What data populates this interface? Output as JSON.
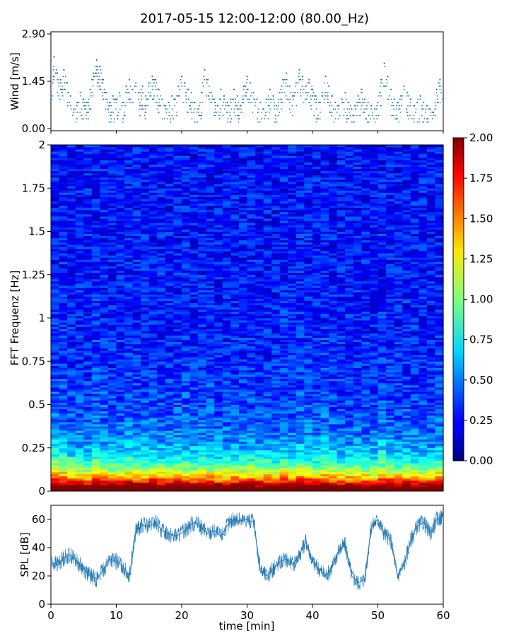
{
  "figure": {
    "title": "2017-05-15 12:00-12:00 (80.00_Hz)"
  },
  "chart_data": [
    {
      "type": "scatter",
      "panel": "wind",
      "ylabel": "Wind [m/s]",
      "xlim": [
        0,
        60
      ],
      "ylim": [
        0,
        2.9
      ],
      "yticks": [
        0.0,
        1.45,
        2.9
      ],
      "ytick_labels": [
        "0.00",
        "1.45",
        "2.90"
      ],
      "series": [
        {
          "color": "#1f77b4",
          "x": [
            0,
            0.5,
            1,
            1.5,
            2,
            2.5,
            3,
            3.5,
            4,
            4.5,
            5,
            5.5,
            6,
            6.5,
            7,
            7.5,
            8,
            8.5,
            9,
            9.5,
            10,
            10.5,
            11,
            11.5,
            12,
            12.5,
            13,
            13.5,
            14,
            14.5,
            15,
            15.5,
            16,
            16.5,
            17,
            17.5,
            18,
            18.5,
            19,
            19.5,
            20,
            20.5,
            21,
            21.5,
            22,
            22.5,
            23,
            23.5,
            24,
            24.5,
            25,
            25.5,
            26,
            26.5,
            27,
            27.5,
            28,
            28.5,
            29,
            29.5,
            30,
            30.5,
            31,
            31.5,
            32,
            32.5,
            33,
            33.5,
            34,
            34.5,
            35,
            35.5,
            36,
            36.5,
            37,
            37.5,
            38,
            38.5,
            39,
            39.5,
            40,
            40.5,
            41,
            41.5,
            42,
            42.5,
            43,
            43.5,
            44,
            44.5,
            45,
            45.5,
            46,
            46.5,
            47,
            47.5,
            48,
            48.5,
            49,
            49.5,
            50,
            50.5,
            51,
            51.5,
            52,
            52.5,
            53,
            53.5,
            54,
            54.5,
            55,
            55.5,
            56,
            56.5,
            57,
            57.5,
            58,
            58.5,
            59,
            59.5,
            60
          ],
          "y": [
            1.3,
            2.2,
            1.7,
            1.5,
            1.8,
            1.4,
            1.0,
            0.6,
            0.8,
            1.1,
            0.9,
            0.8,
            1.2,
            1.7,
            2.1,
            1.9,
            1.5,
            1.1,
            0.8,
            1.0,
            0.9,
            1.1,
            0.8,
            1.3,
            1.5,
            1.2,
            1.4,
            1.1,
            1.3,
            1.0,
            1.4,
            1.6,
            1.5,
            1.2,
            0.9,
            0.7,
            0.8,
            1.0,
            0.9,
            1.3,
            1.6,
            1.4,
            1.2,
            1.1,
            0.8,
            0.6,
            1.1,
            1.8,
            1.5,
            1.1,
            0.9,
            0.7,
            1.2,
            1.0,
            0.8,
            0.9,
            1.2,
            1.0,
            0.7,
            1.3,
            1.6,
            1.4,
            1.1,
            0.9,
            0.8,
            0.6,
            0.9,
            1.2,
            1.0,
            0.7,
            1.1,
            1.5,
            1.7,
            1.3,
            1.0,
            1.4,
            1.8,
            1.6,
            1.3,
            1.5,
            1.2,
            1.0,
            0.8,
            1.1,
            1.6,
            1.3,
            1.0,
            0.8,
            0.7,
            0.9,
            1.1,
            0.8,
            0.6,
            0.7,
            1.0,
            1.2,
            0.9,
            0.8,
            0.7,
            0.6,
            0.8,
            1.5,
            2.0,
            1.6,
            1.2,
            0.9,
            0.8,
            1.0,
            1.3,
            1.1,
            0.9,
            0.7,
            0.8,
            1.0,
            0.8,
            0.7,
            0.6,
            0.5,
            1.2,
            1.5,
            1.0
          ]
        }
      ]
    },
    {
      "type": "heatmap",
      "panel": "spectrogram",
      "ylabel": "FFT Frequenz [Hz]",
      "xlim": [
        0,
        60
      ],
      "ylim": [
        0,
        2
      ],
      "yticks": [
        0,
        0.25,
        0.5,
        0.75,
        1,
        1.25,
        1.5,
        1.75,
        2
      ],
      "ytick_labels": [
        "0",
        "0.25",
        "0.5",
        "0.75",
        "1",
        "1.25",
        "1.5",
        "1.75",
        "2"
      ],
      "colormap": "jet",
      "clim": [
        0,
        2
      ],
      "colorbar_ticks": [
        0.0,
        0.25,
        0.5,
        0.75,
        1.0,
        1.25,
        1.5,
        1.75,
        2.0
      ],
      "colorbar_tick_labels": [
        "0.00",
        "0.25",
        "0.50",
        "0.75",
        "1.00",
        "1.25",
        "1.50",
        "1.75",
        "2.00"
      ]
    },
    {
      "type": "line",
      "panel": "spl",
      "xlabel": "time [min]",
      "ylabel": "SPL [dB]",
      "xlim": [
        0,
        60
      ],
      "ylim": [
        0,
        70
      ],
      "xticks": [
        0,
        10,
        20,
        30,
        40,
        50,
        60
      ],
      "xtick_labels": [
        "0",
        "10",
        "20",
        "30",
        "40",
        "50",
        "60"
      ],
      "yticks": [
        0,
        20,
        40,
        60
      ],
      "ytick_labels": [
        "0",
        "20",
        "40",
        "60"
      ],
      "series": [
        {
          "color": "#1f77b4",
          "x": [
            0,
            1,
            2,
            3,
            4,
            5,
            6,
            7,
            8,
            9,
            10,
            11,
            12,
            13,
            14,
            15,
            16,
            17,
            18,
            19,
            20,
            21,
            22,
            23,
            24,
            25,
            26,
            27,
            28,
            29,
            30,
            31,
            32,
            33,
            34,
            35,
            36,
            37,
            38,
            39,
            40,
            41,
            42,
            43,
            44,
            45,
            46,
            47,
            48,
            49,
            50,
            51,
            52,
            53,
            54,
            55,
            56,
            57,
            58,
            59,
            60
          ],
          "y": [
            30,
            28,
            33,
            35,
            30,
            25,
            20,
            18,
            24,
            32,
            30,
            27,
            20,
            52,
            56,
            55,
            58,
            52,
            50,
            48,
            50,
            55,
            58,
            54,
            50,
            52,
            48,
            56,
            60,
            59,
            60,
            58,
            25,
            20,
            25,
            30,
            32,
            28,
            35,
            45,
            30,
            25,
            20,
            26,
            38,
            42,
            20,
            15,
            18,
            55,
            60,
            50,
            45,
            20,
            28,
            45,
            55,
            58,
            50,
            60,
            62
          ]
        }
      ]
    }
  ]
}
